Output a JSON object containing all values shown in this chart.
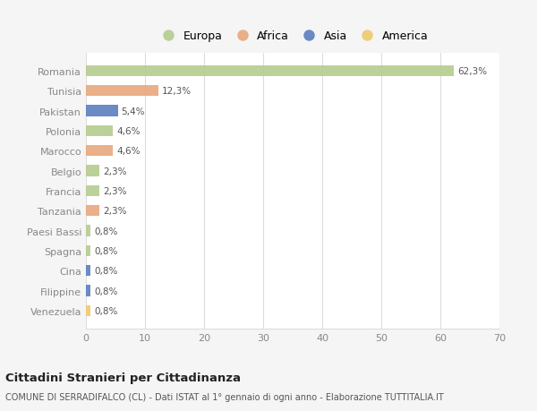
{
  "countries": [
    "Romania",
    "Tunisia",
    "Pakistan",
    "Polonia",
    "Marocco",
    "Belgio",
    "Francia",
    "Tanzania",
    "Paesi Bassi",
    "Spagna",
    "Cina",
    "Filippine",
    "Venezuela"
  ],
  "values": [
    62.3,
    12.3,
    5.4,
    4.6,
    4.6,
    2.3,
    2.3,
    2.3,
    0.8,
    0.8,
    0.8,
    0.8,
    0.8
  ],
  "labels": [
    "62,3%",
    "12,3%",
    "5,4%",
    "4,6%",
    "4,6%",
    "2,3%",
    "2,3%",
    "2,3%",
    "0,8%",
    "0,8%",
    "0,8%",
    "0,8%",
    "0,8%"
  ],
  "continents": [
    "Europa",
    "Africa",
    "Asia",
    "Europa",
    "Africa",
    "Europa",
    "Europa",
    "Africa",
    "Europa",
    "Europa",
    "Asia",
    "Asia",
    "America"
  ],
  "continent_colors": {
    "Europa": "#b5cc8e",
    "Africa": "#e8a87c",
    "Asia": "#5b7fbf",
    "America": "#f0c96e"
  },
  "legend_order": [
    "Europa",
    "Africa",
    "Asia",
    "America"
  ],
  "xlim": [
    0,
    70
  ],
  "xticks": [
    0,
    10,
    20,
    30,
    40,
    50,
    60,
    70
  ],
  "title": "Cittadini Stranieri per Cittadinanza",
  "subtitle": "COMUNE DI SERRADIFALCO (CL) - Dati ISTAT al 1° gennaio di ogni anno - Elaborazione TUTTITALIA.IT",
  "bg_color": "#f5f5f5",
  "plot_bg_color": "#ffffff",
  "grid_color": "#dddddd"
}
